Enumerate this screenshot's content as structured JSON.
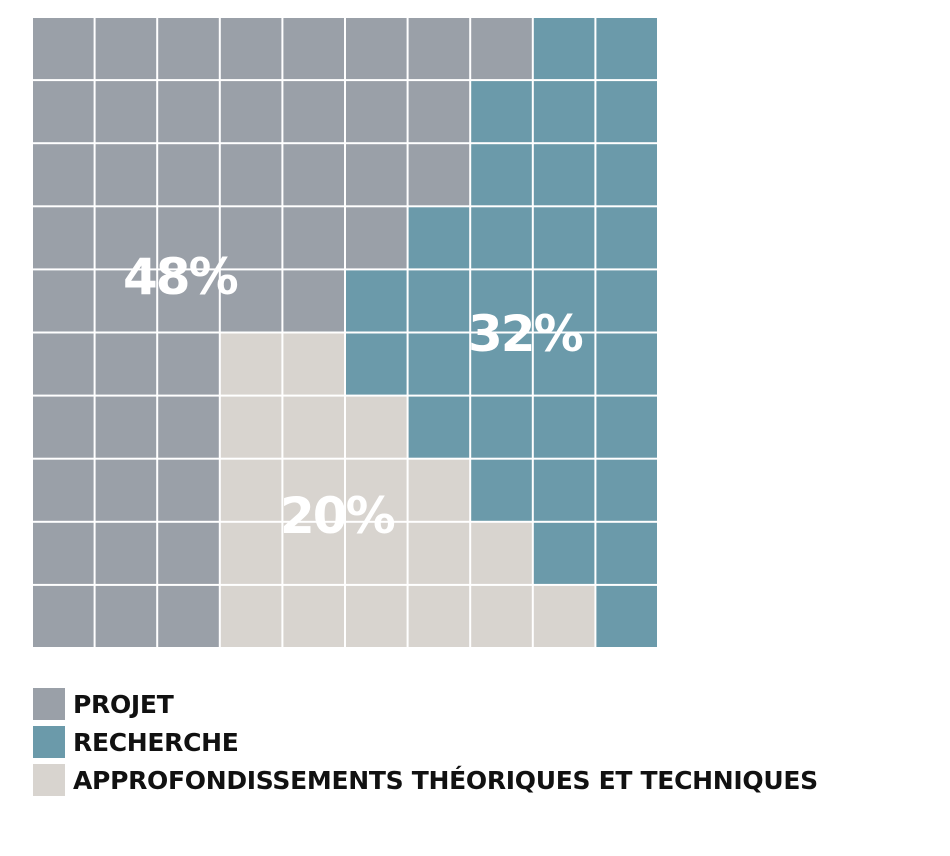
{
  "chart_data": {
    "type": "waffle",
    "title": "",
    "grid": {
      "rows": 10,
      "cols": 10
    },
    "categories": [
      "PROJET",
      "RECHERCHE",
      "APPROFONDISSEMENTS THÉORIQUES ET TECHNIQUES"
    ],
    "values": [
      48,
      32,
      20
    ],
    "data_labels": [
      "48%",
      "32%",
      "20%"
    ],
    "colors": [
      "#9aa0a8",
      "#6b9aaa",
      "#d8d4cf"
    ],
    "cell_assignment": [
      [
        0,
        0,
        0,
        0,
        0,
        0,
        0,
        0,
        1,
        1
      ],
      [
        0,
        0,
        0,
        0,
        0,
        0,
        0,
        1,
        1,
        1
      ],
      [
        0,
        0,
        0,
        0,
        0,
        0,
        0,
        1,
        1,
        1
      ],
      [
        0,
        0,
        0,
        0,
        0,
        0,
        1,
        1,
        1,
        1
      ],
      [
        0,
        0,
        0,
        0,
        0,
        1,
        1,
        1,
        1,
        1
      ],
      [
        0,
        0,
        0,
        2,
        2,
        1,
        1,
        1,
        1,
        1
      ],
      [
        0,
        0,
        0,
        2,
        2,
        2,
        1,
        1,
        1,
        1
      ],
      [
        0,
        0,
        0,
        2,
        2,
        2,
        2,
        1,
        1,
        1
      ],
      [
        0,
        0,
        0,
        2,
        2,
        2,
        2,
        2,
        1,
        1
      ],
      [
        0,
        0,
        0,
        2,
        2,
        2,
        2,
        2,
        2,
        1
      ]
    ],
    "legend_position": "bottom-left"
  },
  "legend": [
    {
      "label": "PROJET",
      "color": "#9aa0a8"
    },
    {
      "label": "RECHERCHE",
      "color": "#6b9aaa"
    },
    {
      "label": "APPROFONDISSEMENTS THÉORIQUES ET TECHNIQUES",
      "color": "#d8d4cf"
    }
  ]
}
